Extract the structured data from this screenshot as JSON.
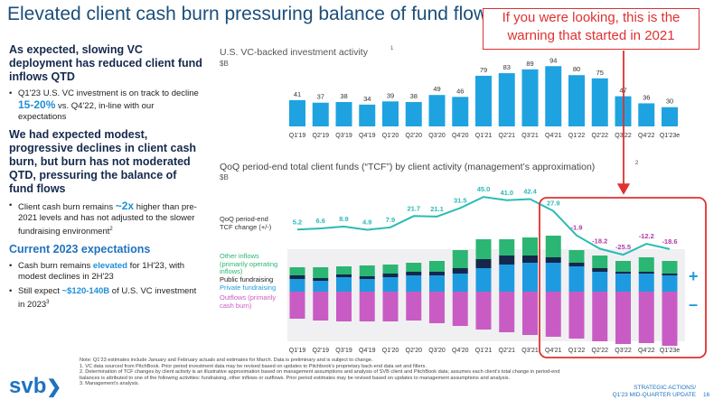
{
  "title": "Elevated client cash burn pressuring balance of fund flows",
  "annotation": "If you were looking, this is the warning that started in 2021",
  "sidebar": [
    {
      "heading": "As expected, slowing VC deployment has reduced client fund inflows QTD",
      "heading_color": "#15294d",
      "bullets": [
        [
          {
            "text": "Q1'23 U.S. VC investment is on track to decline "
          },
          {
            "text": "15-20%",
            "emphasis": true,
            "big": true
          },
          {
            "text": " vs. Q4'22, in-line with our expectations"
          }
        ]
      ]
    },
    {
      "heading": "We had expected modest, progressive declines in client cash burn, but burn has not moderated QTD, pressuring the balance of fund flows",
      "heading_color": "#15294d",
      "bullets": [
        [
          {
            "text": "Client cash burn remains "
          },
          {
            "text": "~2x",
            "emphasis": true,
            "big": true
          },
          {
            "text": " higher than pre-2021 levels and has not adjusted to the slower fundraising environment"
          },
          {
            "text": "2",
            "sup": true
          }
        ]
      ]
    },
    {
      "heading": "Current 2023 expectations",
      "heading_color": "#1e73be",
      "bullets": [
        [
          {
            "text": "Cash burn remains "
          },
          {
            "text": "elevated",
            "emphasis": true
          },
          {
            "text": " for 1H'23, with modest declines in 2H'23"
          }
        ],
        [
          {
            "text": "Still expect "
          },
          {
            "text": "~$120-140B",
            "emphasis": true
          },
          {
            "text": " of U.S. VC investment in 2023"
          },
          {
            "text": "3",
            "sup": true
          }
        ]
      ]
    }
  ],
  "chart_data": [
    {
      "type": "bar",
      "title": "U.S. VC-backed investment activity",
      "title_superscript": "1",
      "subtitle": "$B",
      "categories": [
        "Q1'19",
        "Q2'19",
        "Q3'19",
        "Q4'19",
        "Q1'20",
        "Q2'20",
        "Q3'20",
        "Q4'20",
        "Q1'21",
        "Q2'21",
        "Q3'21",
        "Q4'21",
        "Q1'22",
        "Q2'22",
        "Q3'22",
        "Q4'22",
        "Q1'23e"
      ],
      "values": [
        41,
        37,
        38,
        34,
        39,
        38,
        49,
        46,
        79,
        83,
        89,
        94,
        80,
        75,
        47,
        36,
        30
      ],
      "color": "#1ea3e0"
    },
    {
      "type": "combo",
      "title": "QoQ period-end total client funds (“TCF”) by client activity (management’s approximation)",
      "title_superscript": "2",
      "subtitle": "$B",
      "categories": [
        "Q1'19",
        "Q2'19",
        "Q3'19",
        "Q4'19",
        "Q1'20",
        "Q2'20",
        "Q3'20",
        "Q4'20",
        "Q1'21",
        "Q2'21",
        "Q3'21",
        "Q4'21",
        "Q1'22",
        "Q2'22",
        "Q3'22",
        "Q4'22",
        "Q1'23e"
      ],
      "series": [
        {
          "name": "Private fundraising",
          "color": "#1e9be0",
          "values": [
            14,
            12,
            16,
            14,
            16,
            18,
            18,
            20,
            26,
            30,
            32,
            32,
            28,
            22,
            20,
            20,
            18
          ]
        },
        {
          "name": "Public fundraising",
          "color": "#14284b",
          "values": [
            4,
            3,
            3,
            3,
            4,
            4,
            4,
            6,
            10,
            10,
            8,
            6,
            4,
            4,
            2,
            2,
            2
          ]
        },
        {
          "name": "Other inflows (primarily operating inflows)",
          "color": "#2bb673",
          "values": [
            9,
            12,
            9,
            12,
            10,
            10,
            12,
            20,
            22,
            18,
            20,
            24,
            14,
            14,
            12,
            16,
            14
          ]
        },
        {
          "name": "Outflows (primarily cash burn)",
          "color": "#c95cc4",
          "values": [
            -30,
            -32,
            -33,
            -33,
            -33,
            -32,
            -35,
            -38,
            -42,
            -45,
            -48,
            -50,
            -52,
            -55,
            -58,
            -57,
            -60
          ]
        }
      ],
      "line": {
        "name": "QoQ period-end TCF change (+/-)",
        "color": "#2bbbb5",
        "values": [
          5.2,
          6.6,
          8.9,
          4.9,
          7.9,
          21.7,
          21.1,
          31.5,
          45.0,
          41.0,
          42.4,
          27.9,
          -1.9,
          -18.2,
          -25.5,
          -12.2,
          -18.6
        ],
        "value_labels": [
          "5.2",
          "6.6",
          "8.9",
          "4.9",
          "7.9",
          "21.7",
          "21.1",
          "31.5",
          "45.0",
          "41.0",
          "42.4",
          "27.9",
          "-1.9",
          "-18.2",
          "-25.5",
          "-12.2",
          "-18.6"
        ]
      },
      "positive_sign": "+",
      "negative_sign": "–"
    }
  ],
  "footnotes": [
    "Note: Q1'23 estimates include January and February actuals and estimates for March. Data is preliminary and is subject to change.",
    "1. VC data sourced from PitchBook. Prior period investment data may be revised based on updates to Pitchbook’s proprietary back-end data set and filters.",
    "2. Determination of TCF changes by client activity is an illustrative approximation based on management assumptions and analysis of SVB client and PitchBook data; assumes each client’s total change in period-end balances is attributed to one of the following activities: fundraising, other inflows or outflows. Prior period estimates may be revised based on updates to management assumptions and analysis.",
    "3. Management’s analysis."
  ],
  "footer": {
    "logo": "svb",
    "section": "STRATEGIC ACTIONS/",
    "subsection": "Q1'23 MID-QUARTER UPDATE",
    "page": "16"
  }
}
